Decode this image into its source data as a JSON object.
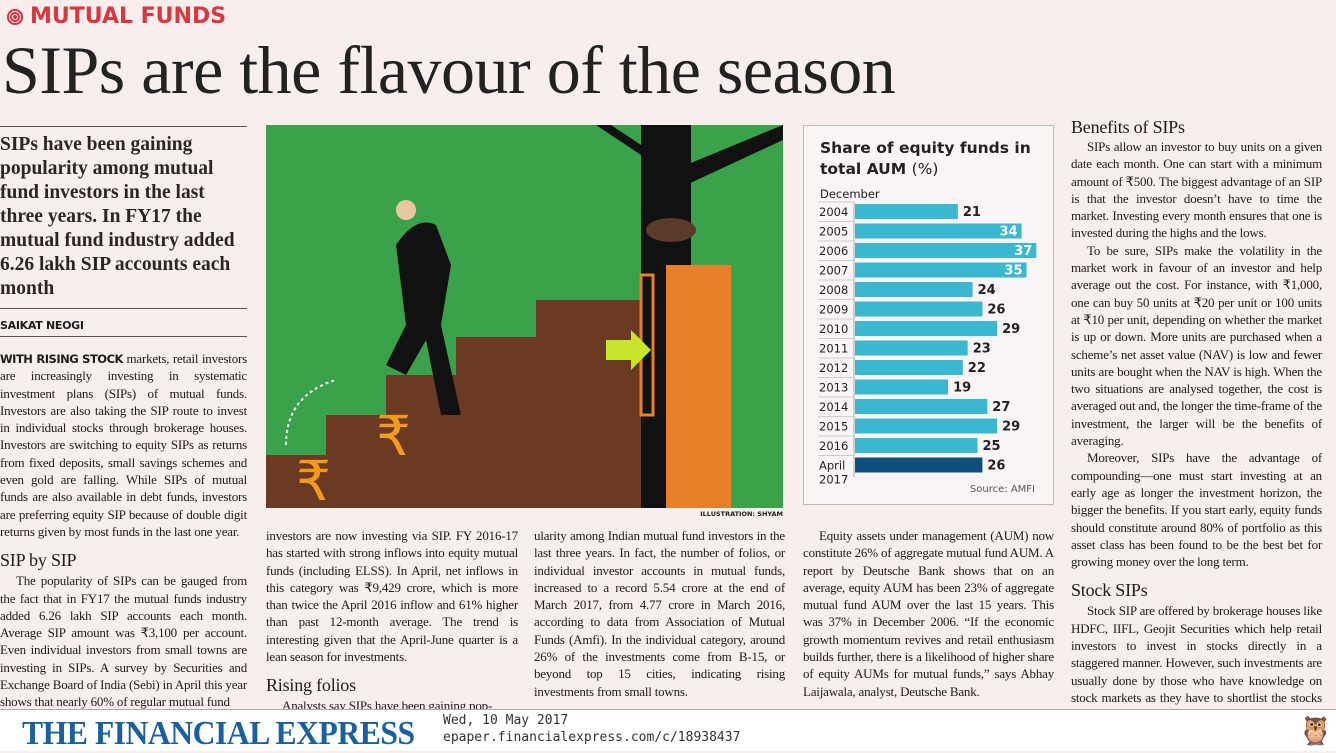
{
  "section": "MUTUAL FUNDS",
  "headline": "SIPs are the flavour of the season",
  "deck": "SIPs have been gaining popularity among mutual fund investors in the last three years. In FY17 the mutual fund industry added 6.26 lakh SIP accounts each month",
  "byline": "SAIKAT NEOGI",
  "col1": {
    "lead": "WITH RISING STOCK",
    "p1": " markets, retail investors are increasingly investing in systematic investment plans (SIPs) of mutual funds. Investors are also taking the SIP route to invest in individual stocks through brokerage houses. Investors are switching to equity SIPs as returns from fixed deposits, small savings schemes and even gold are falling. While SIPs of mutual funds are also available in debt funds, investors are preferring equity SIP because of double digit returns given by most funds in the last one year.",
    "h1": "SIP by SIP",
    "p2": "The popularity of SIPs can be gauged from the fact that in FY17 the mutual funds industry added 6.26 lakh SIP accounts each month. Average SIP amount was ₹3,100 per account. Even individual investors from small towns are investing in SIPs. A survey by Securities and Exchange Board of India (Sebi) in April this year shows that nearly 60% of regular mutual fund"
  },
  "col2": {
    "p1": "investors are now investing via SIP. FY 2016-17 has started with strong inflows into equity mutual funds (including ELSS). In April, net inflows in this category was ₹9,429 crore, which is more than twice the April 2016 inflow and 61% higher than past 12-month average. The trend is interesting given that the April-June quarter is a lean season for investments.",
    "h1": "Rising folios",
    "p2": "Analysts say SIPs have been gaining pop-"
  },
  "col3": {
    "p1": "ularity among Indian mutual fund investors in the last three years. In fact, the number of folios, or individual investor accounts in mutual funds, increased to a record 5.54 crore at the end of March 2017, from 4.77 crore in March 2016, according to data from Association of Mutual Funds (Amfi). In the individual category, around 26% of the investments come from B-15, or beyond top 15 cities, indicating rising investments from small towns."
  },
  "col4": {
    "p1": "Equity assets under management (AUM) now constitute 26% of aggregate mutual fund AUM. A report by Deutsche Bank shows that on an average, equity AUM has been 23% of aggregate mutual fund AUM over the last 15 years. This was 37% in December 2006. “If the economic growth momentum revives and retail enthusiasm builds further, there is a likelihood of higher share of equity AUMs for mutual funds,” says Abhay Laijawala, analyst, Deutsche Bank."
  },
  "col5": {
    "h1": "Benefits of SIPs",
    "p1": "SIPs allow an investor to buy units on a given date each month. One can start with a minimum amount of ₹500. The biggest advantage of an SIP is that the investor doesn’t have to time the market. Investing every month ensures that one is invested during the highs and the lows.",
    "p2": "To be sure, SIPs make the volatility in the market work in favour of an investor and help average out the cost. For instance, with ₹1,000, one can buy 50 units at ₹20 per unit or 100 units at ₹10 per unit, depending on whether the market is up or down. More units are purchased when a scheme’s net asset value (NAV) is low and fewer units are bought when the NAV is high. When the two situations are analysed together, the cost is averaged out and, the longer the time-frame of the investment, the larger will be the benefits of averaging.",
    "p3": "Moreover, SIPs have the advantage of compounding—one must start investing at an early age as longer the investment horizon, the bigger the benefits. If you start early, equity funds should constitute around 80% of portfolio as this asset class has been found to be the best bet for growing money over the long term.",
    "h2": "Stock SIPs",
    "p4": "Stock SIP are offered by brokerage houses like HDFC, IIFL, Geojit Securities which help retail investors to invest in stocks directly in a staggered manner. However, such investments are usually done by those who have knowledge on stock markets as they have to shortlist the stocks themselves and invest."
  },
  "illustration_credit": "ILLUSTRATION: SHYAM",
  "chart_data": {
    "type": "bar",
    "orientation": "horizontal",
    "title": "Share of equity funds in total AUM",
    "title_unit": "(%)",
    "subtitle": "December",
    "source": "Source: AMFI",
    "categories": [
      "2004",
      "2005",
      "2006",
      "2007",
      "2008",
      "2009",
      "2010",
      "2011",
      "2012",
      "2013",
      "2014",
      "2015",
      "2016",
      "April 2017"
    ],
    "values": [
      21,
      34,
      37,
      35,
      24,
      26,
      29,
      23,
      22,
      19,
      27,
      29,
      25,
      26
    ],
    "colors": {
      "bar": "#3bb8cf",
      "highlight": "#0e4f7e"
    }
  },
  "footer": {
    "logo": "THE FINANCIAL EXPRESS",
    "date": "Wed, 10 May 2017",
    "url": "epaper.financialexpress.com/c/18938437"
  }
}
